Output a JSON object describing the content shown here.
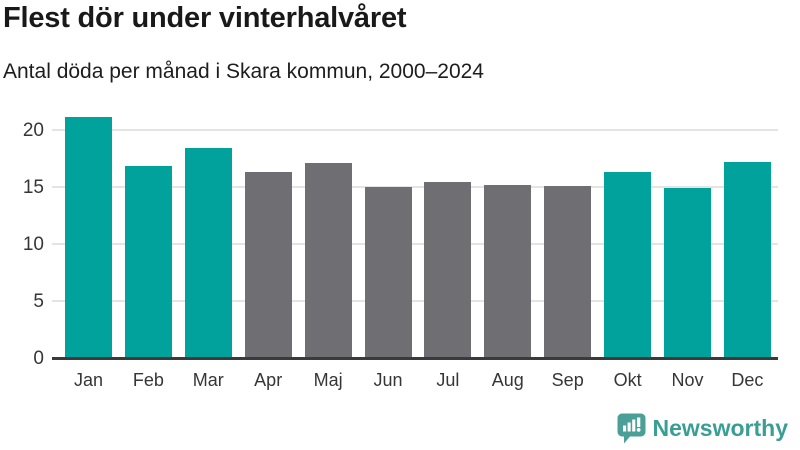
{
  "header": {
    "title": "Flest dör under vinterhalvåret",
    "subtitle": "Antal döda per månad i Skara kommun, 2000–2024"
  },
  "chart_data": {
    "type": "bar",
    "title": "Flest dör under vinterhalvåret",
    "subtitle": "Antal döda per månad i Skara kommun, 2000–2024",
    "categories": [
      "Jan",
      "Feb",
      "Mar",
      "Apr",
      "Maj",
      "Jun",
      "Jul",
      "Aug",
      "Sep",
      "Okt",
      "Nov",
      "Dec"
    ],
    "values": [
      21.1,
      16.8,
      18.4,
      16.3,
      17.1,
      15.0,
      15.4,
      15.2,
      15.1,
      16.3,
      14.9,
      17.2
    ],
    "bar_color_keys": [
      "highlight",
      "highlight",
      "highlight",
      "base",
      "base",
      "base",
      "base",
      "base",
      "base",
      "highlight",
      "highlight",
      "highlight"
    ],
    "highlight_color": "#00a29b",
    "base_color": "#6e6e73",
    "xlabel": "",
    "ylabel": "",
    "yticks": [
      0,
      5,
      10,
      15,
      20
    ],
    "ylim": [
      0,
      21.5
    ],
    "grid": "horizontal-only",
    "legend": "none",
    "gridline_color": "#e4e4e4",
    "axis_color": "#3a3a3a"
  },
  "footer": {
    "brand": "Newsworthy",
    "logo_icon": "newsworthy-speech-bubble-bar-chart-icon",
    "brand_color": "#3a9e95",
    "icon_color": "#4aa097"
  }
}
